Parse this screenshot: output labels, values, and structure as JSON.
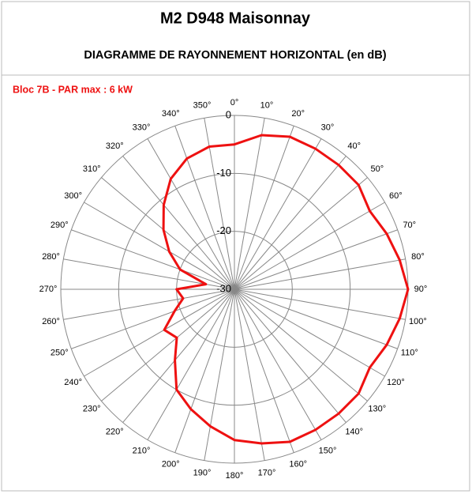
{
  "chart_data": {
    "type": "polar",
    "title": "M2 D948 Maisonnay",
    "subtitle": "DIAGRAMME DE RAYONNEMENT HORIZONTAL  (en dB)",
    "categories": [
      "0°",
      "10°",
      "20°",
      "30°",
      "40°",
      "50°",
      "60°",
      "70°",
      "80°",
      "90°",
      "100°",
      "110°",
      "120°",
      "130°",
      "140°",
      "150°",
      "160°",
      "170°",
      "180°",
      "190°",
      "200°",
      "210°",
      "220°",
      "230°",
      "240°",
      "250°",
      "260°",
      "270°",
      "280°",
      "290°",
      "300°",
      "310°",
      "320°",
      "330°",
      "340°",
      "350°"
    ],
    "series": [
      {
        "name": "Bloc 7B - PAR max : 6 kW",
        "color": "#ee1111",
        "values": [
          -5,
          -3,
          -2,
          -2,
          -2,
          -2,
          -3,
          -2,
          -1,
          0,
          -1,
          -2,
          -3,
          -2,
          -2,
          -2,
          -2,
          -3,
          -4,
          -6,
          -8,
          -10,
          -14,
          -17,
          -16,
          -19,
          -21,
          -20,
          -25,
          -20,
          -17,
          -14,
          -11,
          -8,
          -6,
          -5
        ]
      }
    ],
    "ylim": [
      -30,
      0
    ],
    "yticks": [
      0,
      -10,
      -20,
      -30
    ],
    "grid": true
  }
}
